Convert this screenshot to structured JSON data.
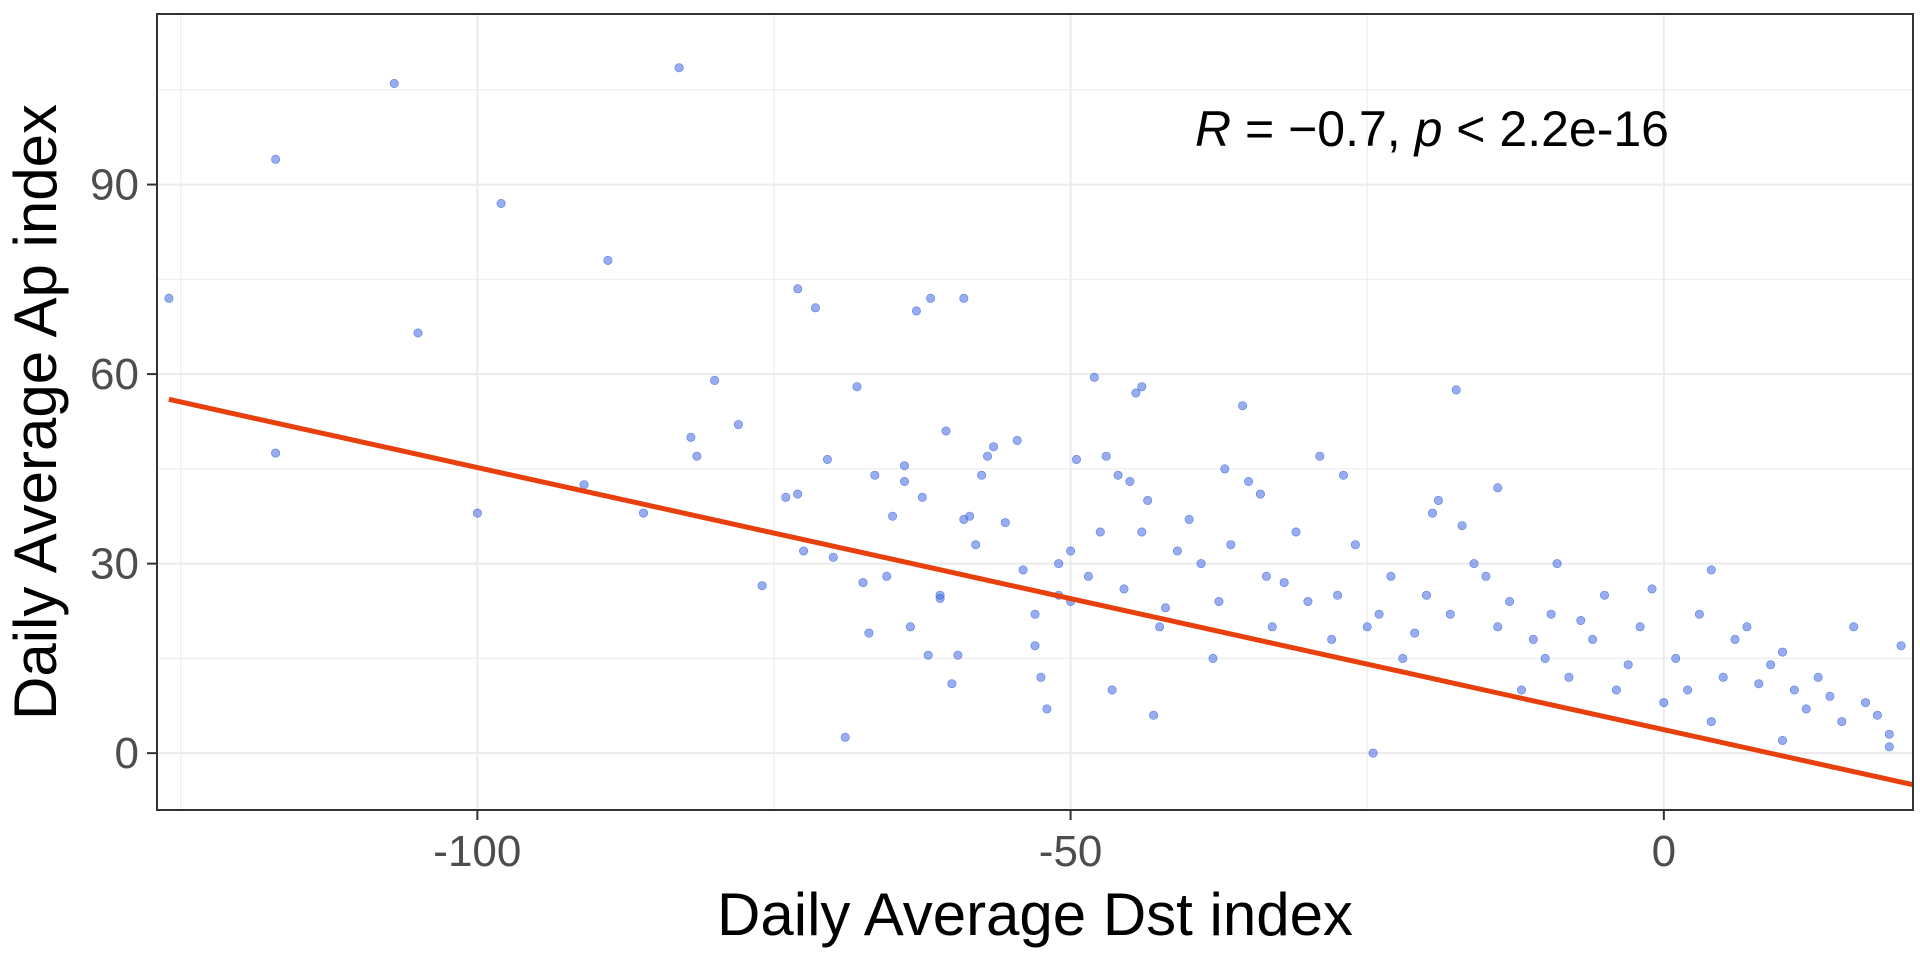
{
  "chart_data": {
    "type": "scatter",
    "xlabel": "Daily Average Dst index",
    "ylabel": "Daily Average Ap index",
    "xlim": [
      -127,
      21
    ],
    "ylim": [
      -9,
      117
    ],
    "x_ticks": [
      -100,
      -50,
      0
    ],
    "x_tick_labels": [
      "-100",
      "-50",
      "0"
    ],
    "y_ticks": [
      0,
      30,
      60,
      90
    ],
    "y_tick_labels": [
      "0",
      "30",
      "60",
      "90"
    ],
    "grid": true,
    "legend": "none",
    "annotation": {
      "r_symbol": "R",
      "r_text": " = −0.7, ",
      "p_symbol": "p",
      "p_text": " < 2.2e-16"
    },
    "colors": {
      "points": "#4169E1",
      "fit_line": "#E8400C",
      "grid": "#ebebeb",
      "panel_border": "#333333"
    },
    "fit_line": {
      "x": [
        -126,
        21
      ],
      "y": [
        56,
        -5
      ]
    },
    "series": [
      {
        "points": [
          [
            -126,
            72
          ],
          [
            -117,
            94
          ],
          [
            -117,
            47.5
          ],
          [
            -107,
            106
          ],
          [
            -105,
            66.5
          ],
          [
            -100,
            38
          ],
          [
            -98,
            87
          ],
          [
            -91,
            42.5
          ],
          [
            -89,
            78
          ],
          [
            -86,
            38
          ],
          [
            -83,
            108.5
          ],
          [
            -82,
            50
          ],
          [
            -81.5,
            47
          ],
          [
            -80,
            59
          ],
          [
            -78,
            52
          ],
          [
            -76,
            26.5
          ],
          [
            -74,
            40.5
          ],
          [
            -73,
            41
          ],
          [
            -73,
            73.5
          ],
          [
            -72.5,
            32
          ],
          [
            -71.5,
            70.5
          ],
          [
            -70.5,
            46.5
          ],
          [
            -70,
            31
          ],
          [
            -69,
            2.5
          ],
          [
            -68,
            58
          ],
          [
            -67.5,
            27
          ],
          [
            -67,
            19
          ],
          [
            -66.5,
            44
          ],
          [
            -65.5,
            28
          ],
          [
            -65,
            37.5
          ],
          [
            -64,
            45.5
          ],
          [
            -64,
            43
          ],
          [
            -63.5,
            20
          ],
          [
            -63,
            70
          ],
          [
            -62.5,
            40.5
          ],
          [
            -62,
            15.5
          ],
          [
            -61.8,
            72
          ],
          [
            -61,
            25
          ],
          [
            -61,
            24.5
          ],
          [
            -60.5,
            51
          ],
          [
            -60,
            11
          ],
          [
            -59.5,
            15.5
          ],
          [
            -59,
            37
          ],
          [
            -59,
            72
          ],
          [
            -58.5,
            37.5
          ],
          [
            -58,
            33
          ],
          [
            -57.5,
            44
          ],
          [
            -57,
            47
          ],
          [
            -56.5,
            48.5
          ],
          [
            -55.5,
            36.5
          ],
          [
            -54.5,
            49.5
          ],
          [
            -54,
            29
          ],
          [
            -53,
            22
          ],
          [
            -53,
            17
          ],
          [
            -52.5,
            12
          ],
          [
            -52,
            7
          ],
          [
            -51,
            30
          ],
          [
            -51,
            25
          ],
          [
            -50,
            32
          ],
          [
            -50,
            24
          ],
          [
            -49.5,
            46.5
          ],
          [
            -48.5,
            28
          ],
          [
            -48,
            59.5
          ],
          [
            -47.5,
            35
          ],
          [
            -47,
            47
          ],
          [
            -46.5,
            10
          ],
          [
            -46,
            44
          ],
          [
            -45.5,
            26
          ],
          [
            -45,
            43
          ],
          [
            -44.5,
            57
          ],
          [
            -44,
            35
          ],
          [
            -44,
            58
          ],
          [
            -43.5,
            40
          ],
          [
            -43,
            6
          ],
          [
            -42.5,
            20
          ],
          [
            -42,
            23
          ],
          [
            -41,
            32
          ],
          [
            -40,
            37
          ],
          [
            -39,
            30
          ],
          [
            -38,
            15
          ],
          [
            -37.5,
            24
          ],
          [
            -37,
            45
          ],
          [
            -36.5,
            33
          ],
          [
            -35.5,
            55
          ],
          [
            -35,
            43
          ],
          [
            -34,
            41
          ],
          [
            -33.5,
            28
          ],
          [
            -33,
            20
          ],
          [
            -32,
            27
          ],
          [
            -31,
            35
          ],
          [
            -30,
            24
          ],
          [
            -29,
            47
          ],
          [
            -28,
            18
          ],
          [
            -27.5,
            25
          ],
          [
            -27,
            44
          ],
          [
            -26,
            33
          ],
          [
            -25,
            20
          ],
          [
            -24.5,
            0
          ],
          [
            -24,
            22
          ],
          [
            -23,
            28
          ],
          [
            -22,
            15
          ],
          [
            -21,
            19
          ],
          [
            -20,
            25
          ],
          [
            -19.5,
            38
          ],
          [
            -19,
            40
          ],
          [
            -18,
            22
          ],
          [
            -17.5,
            57.5
          ],
          [
            -17,
            36
          ],
          [
            -16,
            30
          ],
          [
            -15,
            28
          ],
          [
            -14,
            42
          ],
          [
            -14,
            20
          ],
          [
            -13,
            24
          ],
          [
            -12,
            10
          ],
          [
            -11,
            18
          ],
          [
            -10,
            15
          ],
          [
            -9.5,
            22
          ],
          [
            -9,
            30
          ],
          [
            -8,
            12
          ],
          [
            -7,
            21
          ],
          [
            -6,
            18
          ],
          [
            -5,
            25
          ],
          [
            -4,
            10
          ],
          [
            -3,
            14
          ],
          [
            -2,
            20
          ],
          [
            -1,
            26
          ],
          [
            0,
            8
          ],
          [
            1,
            15
          ],
          [
            2,
            10
          ],
          [
            3,
            22
          ],
          [
            4,
            5
          ],
          [
            4,
            29
          ],
          [
            5,
            12
          ],
          [
            6,
            18
          ],
          [
            7,
            20
          ],
          [
            8,
            11
          ],
          [
            9,
            14
          ],
          [
            10,
            16
          ],
          [
            10,
            2
          ],
          [
            11,
            10
          ],
          [
            12,
            7
          ],
          [
            13,
            12
          ],
          [
            14,
            9
          ],
          [
            15,
            5
          ],
          [
            16,
            20
          ],
          [
            17,
            8
          ],
          [
            18,
            6
          ],
          [
            19,
            3
          ],
          [
            19,
            1
          ],
          [
            20,
            17
          ]
        ]
      }
    ]
  }
}
